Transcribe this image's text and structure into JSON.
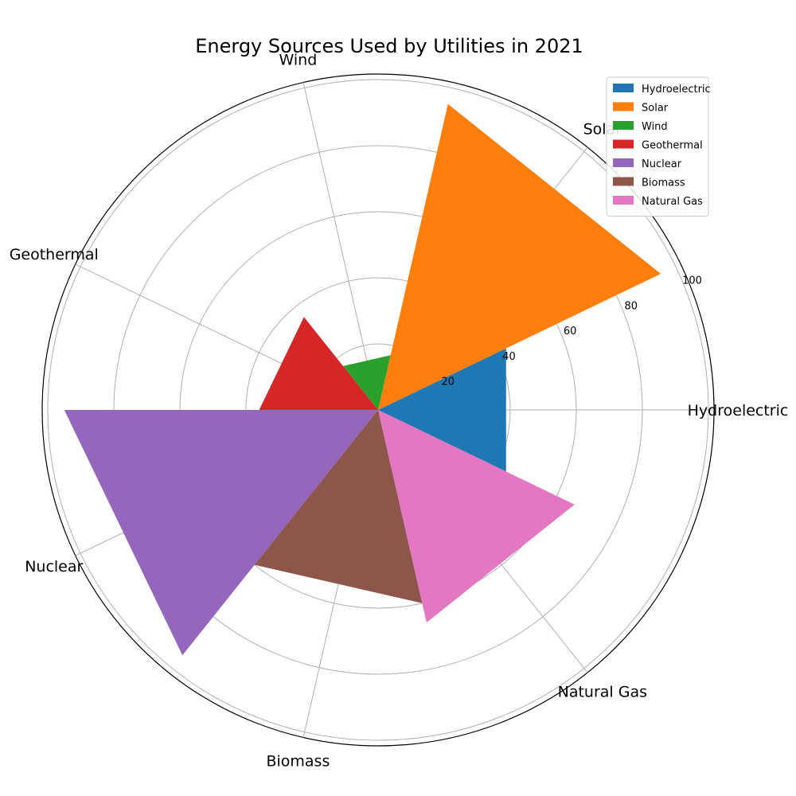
{
  "chart_data": {
    "type": "polar-bar",
    "title": "Energy Sources Used by Utilities in 2021",
    "categories": [
      "Hydroelectric",
      "Solar",
      "Wind",
      "Geothermal",
      "Nuclear",
      "Biomass",
      "Natural Gas"
    ],
    "values": [
      43,
      95,
      17,
      36,
      95,
      60,
      66
    ],
    "colors": [
      "#1f77b4",
      "#ff7f0e",
      "#2ca02c",
      "#d62728",
      "#9467bd",
      "#8c564b",
      "#e377c2"
    ],
    "rlim": [
      0,
      100
    ],
    "r_ticks": [
      20,
      40,
      60,
      80,
      100
    ],
    "grid": true,
    "legend_position": "top-right"
  }
}
